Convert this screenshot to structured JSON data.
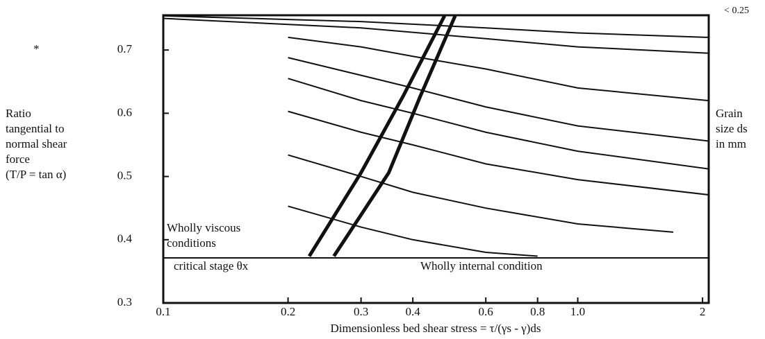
{
  "chart_data": {
    "type": "line",
    "marker": "*",
    "corner_note": "< 0.25",
    "ylabel": [
      "Ratio",
      "tangential to",
      "normal shear",
      "force",
      "(T/P = tan α)"
    ],
    "y2label": [
      "Grain",
      "size ds",
      "in mm"
    ],
    "xlabel": "Dimensionless bed shear stress = τ/(γs - γ)ds",
    "annotations": [
      [
        "Wholly viscous",
        "conditions"
      ],
      [
        "critical stage θx"
      ],
      [
        "Wholly internal condition"
      ]
    ],
    "xscale": "log",
    "xlim": [
      0.1,
      2.07
    ],
    "xticks": [
      0.1,
      0.2,
      0.3,
      0.4,
      0.6,
      0.8,
      {
        "value": 1,
        "label": "1.0"
      },
      2
    ],
    "ylim": [
      0.3,
      0.755
    ],
    "yticks": [
      0.3,
      0.4,
      0.5,
      0.6,
      0.7
    ],
    "series": [
      {
        "color": "#111",
        "width": 2,
        "x": [
          0.1,
          0.3,
          0.6,
          1,
          2.07
        ],
        "values": [
          0.754,
          0.745,
          0.735,
          0.727,
          0.72
        ]
      },
      {
        "color": "#111",
        "width": 2,
        "x": [
          0.1,
          0.3,
          0.6,
          1,
          2.07
        ],
        "values": [
          0.75,
          0.735,
          0.718,
          0.705,
          0.695
        ]
      },
      {
        "color": "#111",
        "width": 2,
        "x": [
          0.2,
          0.3,
          0.4,
          0.6,
          1,
          2.07
        ],
        "values": [
          0.72,
          0.705,
          0.69,
          0.67,
          0.64,
          0.62
        ]
      },
      {
        "color": "#111",
        "width": 2,
        "x": [
          0.2,
          0.3,
          0.4,
          0.6,
          1,
          2.07
        ],
        "values": [
          0.688,
          0.66,
          0.64,
          0.61,
          0.58,
          0.556
        ]
      },
      {
        "color": "#111",
        "width": 2,
        "x": [
          0.2,
          0.3,
          0.4,
          0.6,
          1,
          2.07
        ],
        "values": [
          0.655,
          0.62,
          0.6,
          0.57,
          0.54,
          0.512
        ]
      },
      {
        "color": "#111",
        "width": 2,
        "x": [
          0.2,
          0.3,
          0.4,
          0.6,
          1,
          2.07
        ],
        "values": [
          0.603,
          0.57,
          0.55,
          0.52,
          0.495,
          0.471
        ]
      },
      {
        "color": "#111",
        "width": 2,
        "x": [
          0.2,
          0.3,
          0.4,
          0.6,
          1,
          1.7
        ],
        "values": [
          0.534,
          0.5,
          0.475,
          0.45,
          0.425,
          0.412
        ]
      },
      {
        "color": "#111",
        "width": 2,
        "x": [
          0.2,
          0.3,
          0.4,
          0.6,
          0.8
        ],
        "values": [
          0.453,
          0.42,
          0.4,
          0.38,
          0.374
        ]
      },
      {
        "color": "#111",
        "width": 5,
        "x": [
          0.225,
          0.3,
          0.379,
          0.477
        ],
        "values": [
          0.374,
          0.506,
          0.627,
          0.754
        ]
      },
      {
        "color": "#111",
        "width": 5,
        "x": [
          0.258,
          0.35,
          0.417,
          0.506
        ],
        "values": [
          0.374,
          0.506,
          0.627,
          0.754
        ]
      }
    ]
  }
}
